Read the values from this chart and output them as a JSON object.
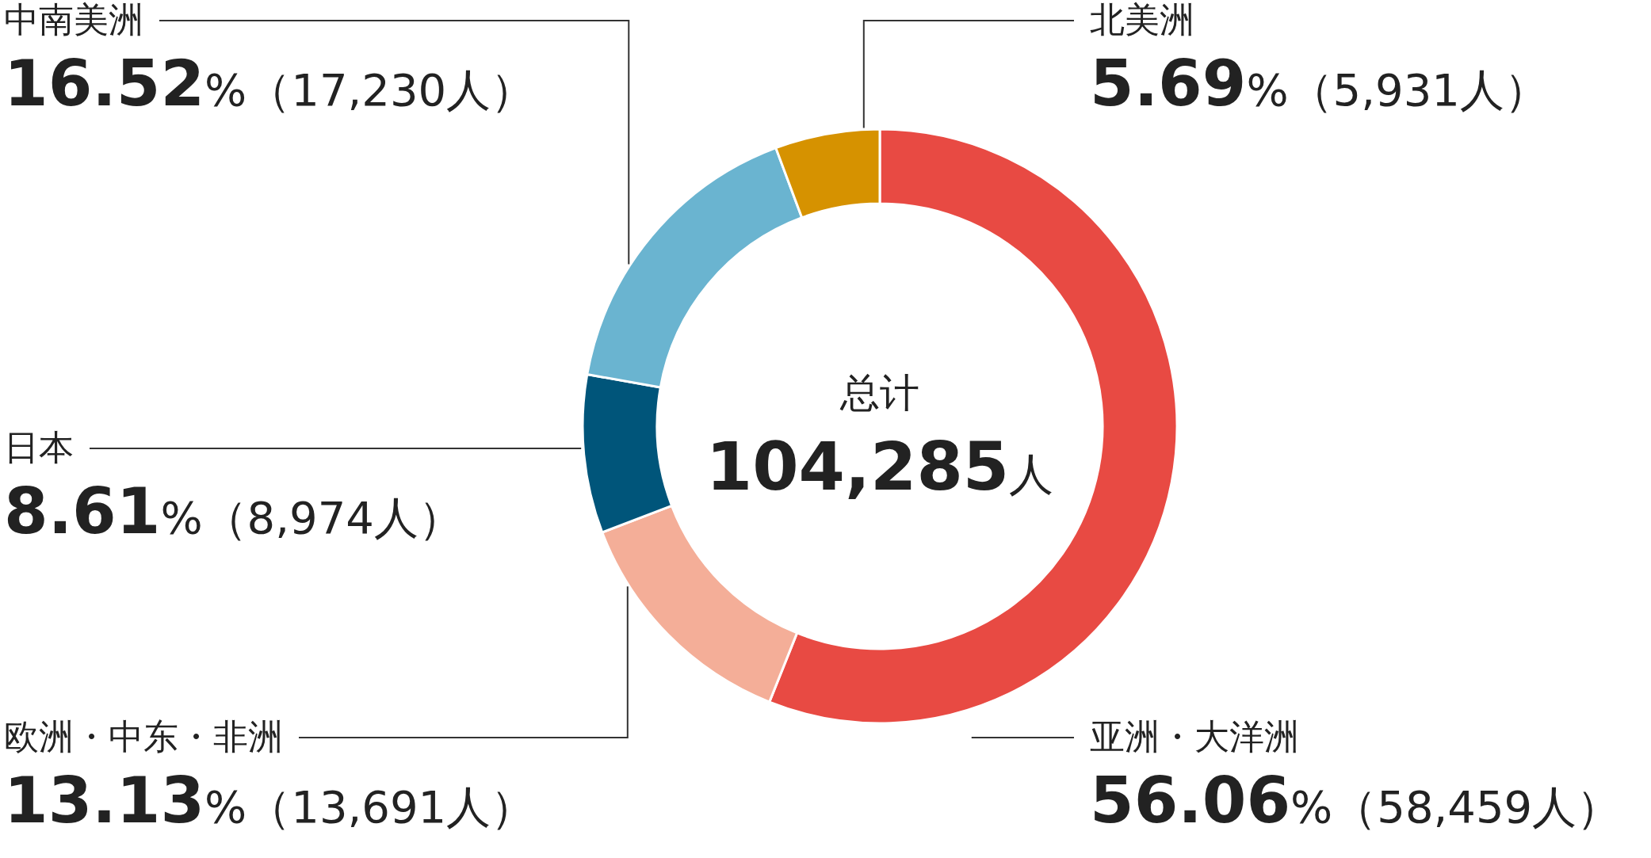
{
  "chart_data": {
    "type": "donut",
    "title": "总计",
    "subtitle": "104,285人",
    "categories": [
      "亚洲・大洋洲",
      "欧洲・中东・非洲",
      "日本",
      "中南美洲",
      "北美洲"
    ],
    "values": [
      58459,
      13691,
      8974,
      17230,
      5931
    ],
    "colors": [
      "#e84a43",
      "#f4ae98",
      "#00557a",
      "#6ab4d0",
      "#d69200"
    ],
    "value_labels": [
      "56.06%（58,459人）",
      "13.13%（13,691人）",
      "8.61%（8,974人）",
      "16.52%（17,230人）",
      "5.69%（5,931人）"
    ]
  }
}
